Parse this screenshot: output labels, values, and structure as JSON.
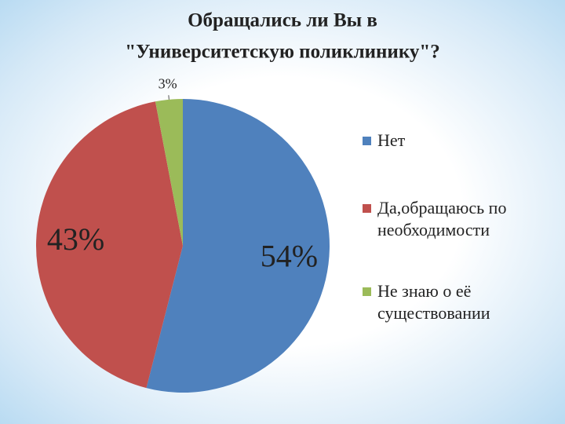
{
  "chart_data": {
    "type": "pie",
    "title": [
      "Обращались ли Вы в",
      "\"Университетскую поликлинику\"?"
    ],
    "categories": [
      "Нет",
      "Да,обращаюсь по необходимости",
      "Не знаю о её существовании"
    ],
    "values": [
      54,
      43,
      3
    ],
    "value_labels": [
      "54%",
      "43%",
      "3%"
    ],
    "colors": [
      "#4f81bd",
      "#c0504d",
      "#9bbb59"
    ],
    "legend": "right"
  }
}
